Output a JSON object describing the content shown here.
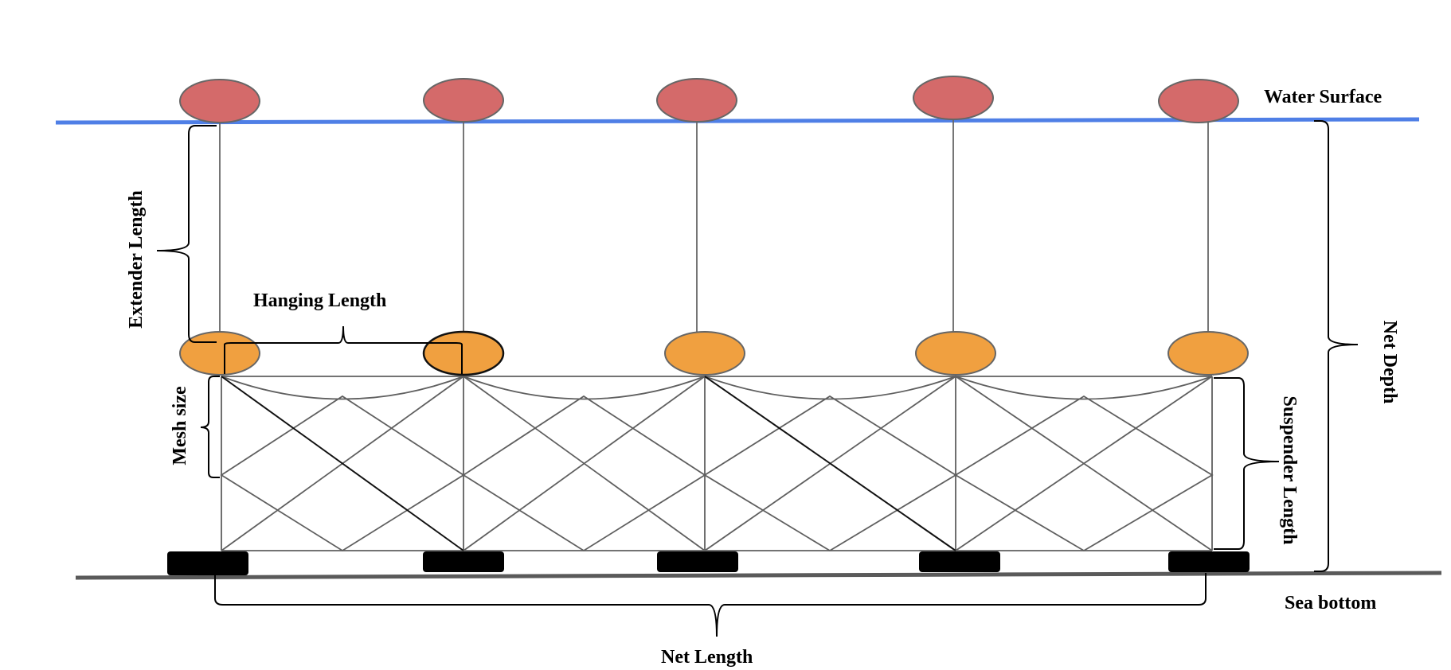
{
  "labels": {
    "water_surface": "Water Surface",
    "sea_bottom": "Sea bottom",
    "extender_length": "Extender Length",
    "hanging_length": "Hanging Length",
    "mesh_size": "Mesh size",
    "suspender_length": "Suspender Length",
    "net_depth": "Net Depth",
    "net_length": "Net Length"
  },
  "colors": {
    "water_line": "#4f7fe6",
    "sea_bottom_line": "#5a5a5a",
    "surface_float": "#d46a6a",
    "net_float": "#f0a040",
    "sinker": "#000000"
  },
  "counts": {
    "surface_floats": 5,
    "net_floats": 5,
    "sinkers": 5
  }
}
